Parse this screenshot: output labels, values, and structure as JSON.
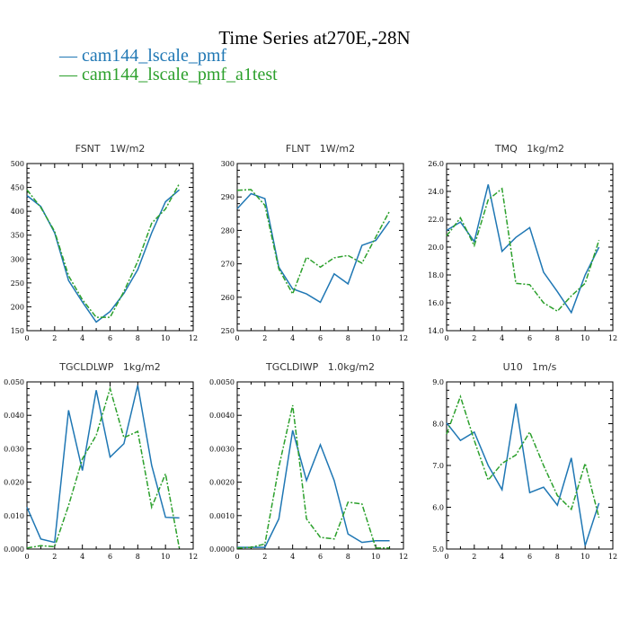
{
  "title": "Time Series at270E,-28N",
  "legend": [
    {
      "label": "cam144_lscale_pmf",
      "color": "#1f77b4"
    },
    {
      "label": "cam144_lscale_pmf_a1test",
      "color": "#2ca02c"
    }
  ],
  "chart_data": [
    {
      "type": "line",
      "title": "FSNT 1W/m2",
      "x": [
        0,
        1,
        2,
        3,
        4,
        5,
        6,
        7,
        8,
        9,
        10,
        11
      ],
      "xlim": [
        0,
        12
      ],
      "xticks": [
        "0",
        "2",
        "4",
        "6",
        "8",
        "10",
        "12"
      ],
      "ylim": [
        150,
        500
      ],
      "yticks": [
        "150",
        "200",
        "250",
        "300",
        "350",
        "400",
        "450",
        "500"
      ],
      "series": [
        {
          "name": "cam144_lscale_pmf",
          "values": [
            433,
            410,
            355,
            255,
            210,
            168,
            190,
            228,
            278,
            355,
            420,
            445
          ]
        },
        {
          "name": "cam144_lscale_pmf_a1test",
          "values": [
            445,
            408,
            358,
            265,
            215,
            178,
            178,
            232,
            295,
            375,
            405,
            458
          ]
        }
      ]
    },
    {
      "type": "line",
      "title": "FLNT 1W/m2",
      "x": [
        0,
        1,
        2,
        3,
        4,
        5,
        6,
        7,
        8,
        9,
        10,
        11
      ],
      "xlim": [
        0,
        12
      ],
      "xticks": [
        "0",
        "2",
        "4",
        "6",
        "8",
        "10",
        "12"
      ],
      "ylim": [
        250,
        300
      ],
      "yticks": [
        "250",
        "260",
        "270",
        "280",
        "290",
        "300"
      ],
      "series": [
        {
          "name": "cam144_lscale_pmf",
          "values": [
            286.5,
            291.0,
            289.5,
            269.0,
            262.5,
            261.0,
            258.5,
            267.0,
            264.0,
            275.5,
            277.0,
            282.8
          ]
        },
        {
          "name": "cam144_lscale_pmf_a1test",
          "values": [
            292.0,
            292.2,
            287.5,
            268.5,
            261.0,
            272.0,
            269.0,
            271.8,
            272.5,
            270.2,
            278.0,
            285.8
          ]
        }
      ]
    },
    {
      "type": "line",
      "title": "TMQ 1kg/m2",
      "x": [
        0,
        1,
        2,
        3,
        4,
        5,
        6,
        7,
        8,
        9,
        10,
        11
      ],
      "xlim": [
        0,
        12
      ],
      "xticks": [
        "0",
        "2",
        "4",
        "6",
        "8",
        "10",
        "12"
      ],
      "ylim": [
        14.0,
        26.0
      ],
      "yticks": [
        "14.0",
        "16.0",
        "18.0",
        "20.0",
        "22.0",
        "24.0",
        "26.0"
      ],
      "series": [
        {
          "name": "cam144_lscale_pmf",
          "values": [
            21.2,
            21.8,
            20.4,
            24.5,
            19.7,
            20.7,
            21.4,
            18.2,
            16.8,
            15.3,
            18.0,
            20.0
          ]
        },
        {
          "name": "cam144_lscale_pmf_a1test",
          "values": [
            20.8,
            22.1,
            20.1,
            23.4,
            24.2,
            17.4,
            17.3,
            16.0,
            15.4,
            16.5,
            17.4,
            20.5
          ]
        }
      ]
    },
    {
      "type": "line",
      "title": "TGCLDLWP 1kg/m2",
      "x": [
        0,
        1,
        2,
        3,
        4,
        5,
        6,
        7,
        8,
        9,
        10,
        11
      ],
      "xlim": [
        0,
        12
      ],
      "xticks": [
        "0",
        "2",
        "4",
        "6",
        "8",
        "10",
        "12"
      ],
      "ylim": [
        0,
        0.05
      ],
      "yticks": [
        "0.000",
        "0.010",
        "0.020",
        "0.030",
        "0.040",
        "0.050"
      ],
      "series": [
        {
          "name": "cam144_lscale_pmf",
          "values": [
            0.0125,
            0.003,
            0.002,
            0.0415,
            0.0235,
            0.0475,
            0.0275,
            0.0315,
            0.049,
            0.025,
            0.0095,
            0.0093
          ]
        },
        {
          "name": "cam144_lscale_pmf_a1test",
          "values": [
            0.0003,
            0.001,
            0.0007,
            0.013,
            0.027,
            0.034,
            0.048,
            0.0333,
            0.0352,
            0.0125,
            0.0225,
            0.0002
          ]
        }
      ]
    },
    {
      "type": "line",
      "title": "TGCLDIWP 1.0kg/m2",
      "x": [
        0,
        1,
        2,
        3,
        4,
        5,
        6,
        7,
        8,
        9,
        10,
        11
      ],
      "xlim": [
        0,
        12
      ],
      "xticks": [
        "0",
        "2",
        "4",
        "6",
        "8",
        "10",
        "12"
      ],
      "ylim": [
        0,
        0.005
      ],
      "yticks": [
        "0.0000",
        "0.0010",
        "0.0020",
        "0.0030",
        "0.0040",
        "0.0050"
      ],
      "series": [
        {
          "name": "cam144_lscale_pmf",
          "values": [
            5e-05,
            5e-05,
            5e-05,
            0.0009,
            0.00355,
            0.00205,
            0.00312,
            0.00205,
            0.00045,
            0.0002,
            0.00025,
            0.00025
          ]
        },
        {
          "name": "cam144_lscale_pmf_a1test",
          "values": [
            3e-05,
            5e-05,
            0.00015,
            0.00245,
            0.0043,
            0.0009,
            0.00035,
            0.0003,
            0.0014,
            0.00135,
            3e-05,
            3e-05
          ]
        }
      ]
    },
    {
      "type": "line",
      "title": "U10 1m/s",
      "x": [
        0,
        1,
        2,
        3,
        4,
        5,
        6,
        7,
        8,
        9,
        10,
        11
      ],
      "xlim": [
        0,
        12
      ],
      "xticks": [
        "0",
        "2",
        "4",
        "6",
        "8",
        "10",
        "12"
      ],
      "ylim": [
        5.0,
        9.0
      ],
      "yticks": [
        "5.0",
        "6.0",
        "7.0",
        "8.0",
        "9.0"
      ],
      "series": [
        {
          "name": "cam144_lscale_pmf",
          "values": [
            8.02,
            7.6,
            7.8,
            7.0,
            6.42,
            8.48,
            6.35,
            6.48,
            6.05,
            7.18,
            5.08,
            6.1
          ]
        },
        {
          "name": "cam144_lscale_pmf_a1test",
          "values": [
            7.75,
            8.65,
            7.6,
            6.65,
            7.05,
            7.25,
            7.8,
            7.0,
            6.28,
            5.95,
            7.05,
            5.75
          ]
        }
      ]
    }
  ]
}
